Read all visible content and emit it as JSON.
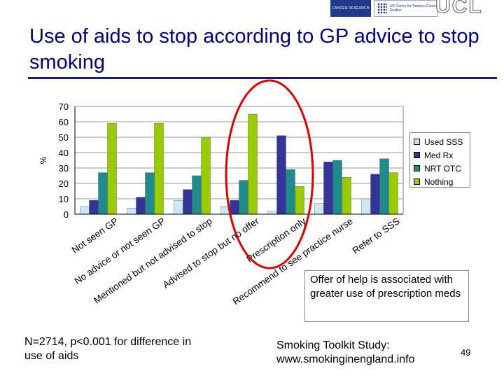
{
  "title": "Use of aids to stop according to GP advice to stop smoking",
  "logos": {
    "left_text": "CANCER RESEARCH UK",
    "middle_text": "UK Centre for Tobacco Control Studies",
    "right_text": "UCL"
  },
  "chart_data": {
    "type": "bar",
    "ylabel": "%",
    "ylim": [
      0,
      70
    ],
    "yticks": [
      0,
      10,
      20,
      30,
      40,
      50,
      60,
      70
    ],
    "categories": [
      [
        "Not seen GP"
      ],
      [
        "No advice or not seen GP"
      ],
      [
        "Mentioned but not advised to stop"
      ],
      [
        "Advised to stop but no offer"
      ],
      [
        "Prescription only"
      ],
      [
        "Recommend to see practice nurse"
      ],
      [
        "Refer to SSS"
      ]
    ],
    "series": [
      {
        "name": "Used SSS",
        "color": "#cce8f4",
        "values": [
          5,
          4,
          9,
          5,
          2,
          7,
          10
        ]
      },
      {
        "name": "Med Rx",
        "color": "#333399",
        "values": [
          9,
          11,
          16,
          9,
          51,
          34,
          26
        ]
      },
      {
        "name": "NRT OTC",
        "color": "#1e8c8c",
        "values": [
          27,
          27,
          25,
          22,
          29,
          35,
          36
        ]
      },
      {
        "name": "Nothing",
        "color": "#99cc00",
        "values": [
          59,
          59,
          50,
          65,
          18,
          24,
          27
        ]
      }
    ],
    "legend_position": "right",
    "grid": true
  },
  "callout": "Offer of help is associated with greater use of prescription meds",
  "note": "N=2714, p<0.001 for difference in use of aids",
  "source": "Smoking Toolkit Study: www.smokinginengland.info",
  "page_number": "49"
}
